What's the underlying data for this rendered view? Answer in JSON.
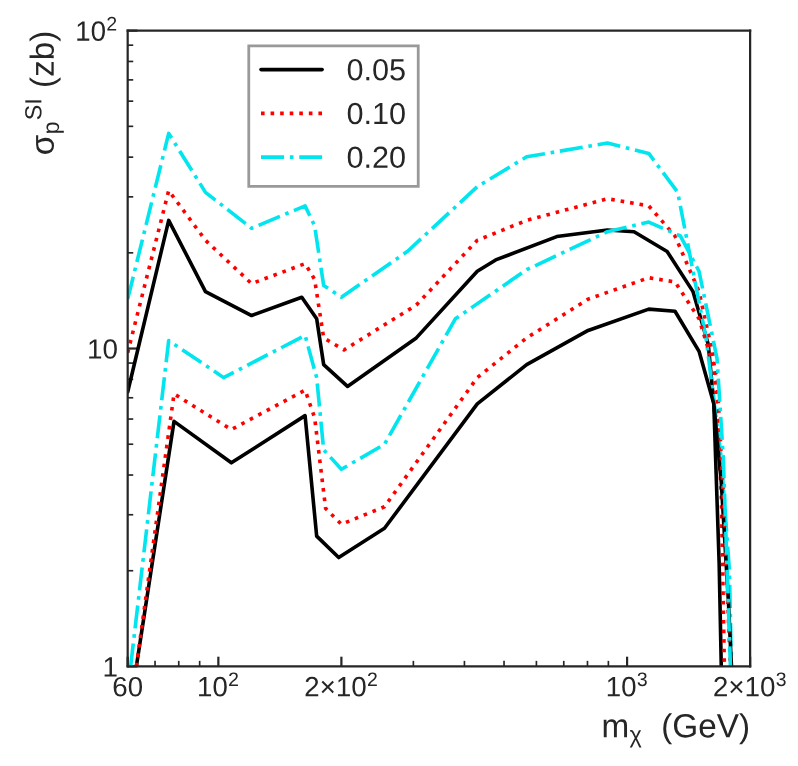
{
  "chart_data": {
    "type": "line",
    "xlabel": "m$_{χ}$  (GeV)",
    "ylabel": "σ$_{p}$$^{SI}$ (zb)",
    "log": "xy",
    "grid": false,
    "legend": "top left",
    "marker": "none",
    "xlim": [
      60,
      2000
    ],
    "ylim": [
      1,
      100
    ],
    "xticks": [
      60,
      {
        "value": 100,
        "label": "10$^{2}$"
      },
      {
        "value": 200,
        "label": "2×10$^{2}$"
      },
      {
        "value": 1000,
        "label": "10$^{3}$"
      },
      {
        "value": 2000,
        "label": "2×10$^{3}$"
      }
    ],
    "yticks": [
      1,
      10,
      {
        "value": 100,
        "label": "10$^{2}$"
      }
    ],
    "series": [
      {
        "name": "0.05",
        "color": "#000000",
        "line_style": "solid",
        "x": [
          60,
          75.6,
          93,
          120.6,
          160,
          174,
          181,
          207,
          305,
          430,
          477,
          673,
          895,
          1040,
          1253,
          1450,
          1580,
          1630,
          1680,
          1700
        ],
        "values": [
          7.3,
          25.3,
          15.1,
          12.7,
          14.5,
          12.4,
          8.9,
          7.6,
          10.8,
          17.5,
          19.0,
          22.5,
          23.6,
          23.3,
          20.2,
          15.1,
          10.3,
          6.7,
          2.1,
          1
        ]
      },
      {
        "name": "0.10",
        "color": "#ff0000",
        "line_style": "dotted",
        "x": [
          60,
          75.6,
          93,
          120.6,
          163,
          172,
          181,
          203,
          305,
          430,
          568,
          895,
          1130,
          1310,
          1500,
          1630,
          1700,
          1730
        ],
        "values": [
          9.7,
          31.4,
          21.9,
          16.0,
          18.5,
          16.5,
          10.8,
          9.9,
          13.7,
          21.9,
          25.3,
          29.6,
          28.1,
          22.6,
          15.1,
          9.3,
          3.5,
          1
        ]
      },
      {
        "name": "0.20",
        "color": "#00e5ee",
        "line_style": "dashdot",
        "x": [
          60,
          75.6,
          93,
          120.6,
          163,
          172,
          181,
          200,
          290,
          430,
          568,
          895,
          1130,
          1330,
          1450,
          1560,
          1700,
          1780,
          1800
        ],
        "values": [
          14.3,
          47.5,
          31.0,
          23.9,
          28.1,
          24.3,
          15.8,
          14.5,
          20.2,
          32.3,
          40.1,
          44.3,
          41.1,
          31.0,
          17.5,
          10.8,
          4.5,
          2.0,
          1
        ]
      },
      {
        "color": "#000000",
        "line_style": "solid",
        "x": [
          63,
          77.9,
          107.6,
          163,
          174,
          197,
          255,
          430,
          568,
          803,
          1130,
          1310,
          1500,
          1630,
          1700,
          1770,
          1800
        ],
        "values": [
          1,
          5.9,
          4.37,
          6.15,
          2.57,
          2.2,
          2.72,
          6.7,
          8.9,
          11.4,
          13.3,
          13.1,
          9.8,
          6.7,
          3.8,
          1.6,
          1
        ]
      },
      {
        "color": "#ff0000",
        "line_style": "dotted",
        "x": [
          63,
          77.9,
          107.6,
          163,
          172,
          183,
          200,
          255,
          430,
          568,
          803,
          1130,
          1310,
          1500,
          1660,
          1710,
          1790
        ],
        "values": [
          1,
          7.2,
          5.56,
          7.4,
          6.06,
          3.14,
          2.8,
          3.18,
          8.1,
          10.8,
          14.3,
          16.7,
          16.2,
          12.4,
          8.1,
          4.0,
          1
        ]
      },
      {
        "color": "#00e5ee",
        "line_style": "dashdot",
        "x": [
          61,
          75.6,
          103,
          163,
          174,
          181,
          200,
          255,
          380,
          568,
          895,
          1130,
          1350,
          1500,
          1660,
          1720,
          1790
        ],
        "values": [
          1,
          10.6,
          8.1,
          11.0,
          8.1,
          4.8,
          4.17,
          5.0,
          12.4,
          17.7,
          23.3,
          25.0,
          22.6,
          17.5,
          9.3,
          4.5,
          1
        ]
      }
    ]
  }
}
